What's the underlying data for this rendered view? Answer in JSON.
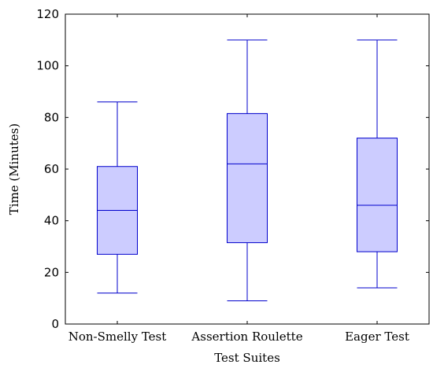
{
  "chart_data": {
    "type": "box",
    "xlabel": "Test Suites",
    "ylabel": "Time (Minutes)",
    "ylim": [
      0,
      120
    ],
    "yticks": [
      "0",
      "20",
      "40",
      "60",
      "80",
      "100",
      "120"
    ],
    "grid": false,
    "categories": [
      "Non-Smelly Test",
      "Assertion Roulette",
      "Eager Test"
    ],
    "boxes": [
      {
        "category": "Non-Smelly Test",
        "min": 12,
        "q1": 27,
        "median": 44,
        "q3": 61,
        "max": 86
      },
      {
        "category": "Assertion Roulette",
        "min": 9,
        "q1": 31.5,
        "median": 62,
        "q3": 81.5,
        "max": 110
      },
      {
        "category": "Eager Test",
        "min": 14,
        "q1": 28,
        "median": 46,
        "q3": 72,
        "max": 110
      }
    ],
    "colors": {
      "box_fill": "#ccccff",
      "box_stroke": "#0000cc",
      "axis": "#000000"
    }
  }
}
